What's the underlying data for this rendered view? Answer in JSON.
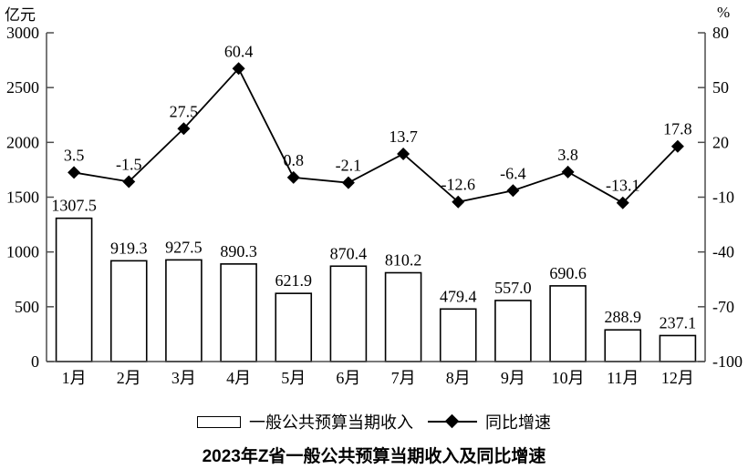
{
  "chart_data": {
    "type": "bar+line",
    "title": "2023年Z省一般公共预算当期收入及同比增速",
    "categories": [
      "1月",
      "2月",
      "3月",
      "4月",
      "5月",
      "6月",
      "7月",
      "8月",
      "9月",
      "10月",
      "11月",
      "12月"
    ],
    "series": [
      {
        "name": "一般公共预算当期收入",
        "type": "bar",
        "axis": "left",
        "values": [
          1307.5,
          919.3,
          927.5,
          890.3,
          621.9,
          870.4,
          810.2,
          479.4,
          557.0,
          690.6,
          288.9,
          237.1
        ],
        "labels": [
          "1307.5",
          "919.3",
          "927.5",
          "890.3",
          "621.9",
          "870.4",
          "810.2",
          "479.4",
          "557.0",
          "690.6",
          "288.9",
          "237.1"
        ]
      },
      {
        "name": "同比增速",
        "type": "line",
        "axis": "right",
        "values": [
          3.5,
          -1.5,
          27.5,
          60.4,
          0.8,
          -2.1,
          13.7,
          -12.6,
          -6.4,
          3.8,
          -13.1,
          17.8
        ],
        "labels": [
          "3.5",
          "-1.5",
          "27.5",
          "60.4",
          "0.8",
          "-2.1",
          "13.7",
          "-12.6",
          "-6.4",
          "3.8",
          "-13.1",
          "17.8"
        ]
      }
    ],
    "left_axis": {
      "unit": "亿元",
      "min": 0,
      "max": 3000,
      "step": 500,
      "ticks": [
        "3000",
        "2500",
        "2000",
        "1500",
        "1000",
        "500",
        "0"
      ]
    },
    "right_axis": {
      "unit": "%",
      "min": -100,
      "max": 80,
      "step": 30,
      "ticks": [
        "80",
        "50",
        "20",
        "-10",
        "-40",
        "-70",
        "-100"
      ]
    },
    "layout": {
      "grid": false,
      "legend_position": "bottom",
      "background": "#ffffff"
    },
    "colors": {
      "bar_fill": "#ffffff",
      "bar_border": "#000000",
      "line": "#000000",
      "marker": "#000000",
      "axis": "#4d4d4d",
      "text": "#000000"
    }
  }
}
